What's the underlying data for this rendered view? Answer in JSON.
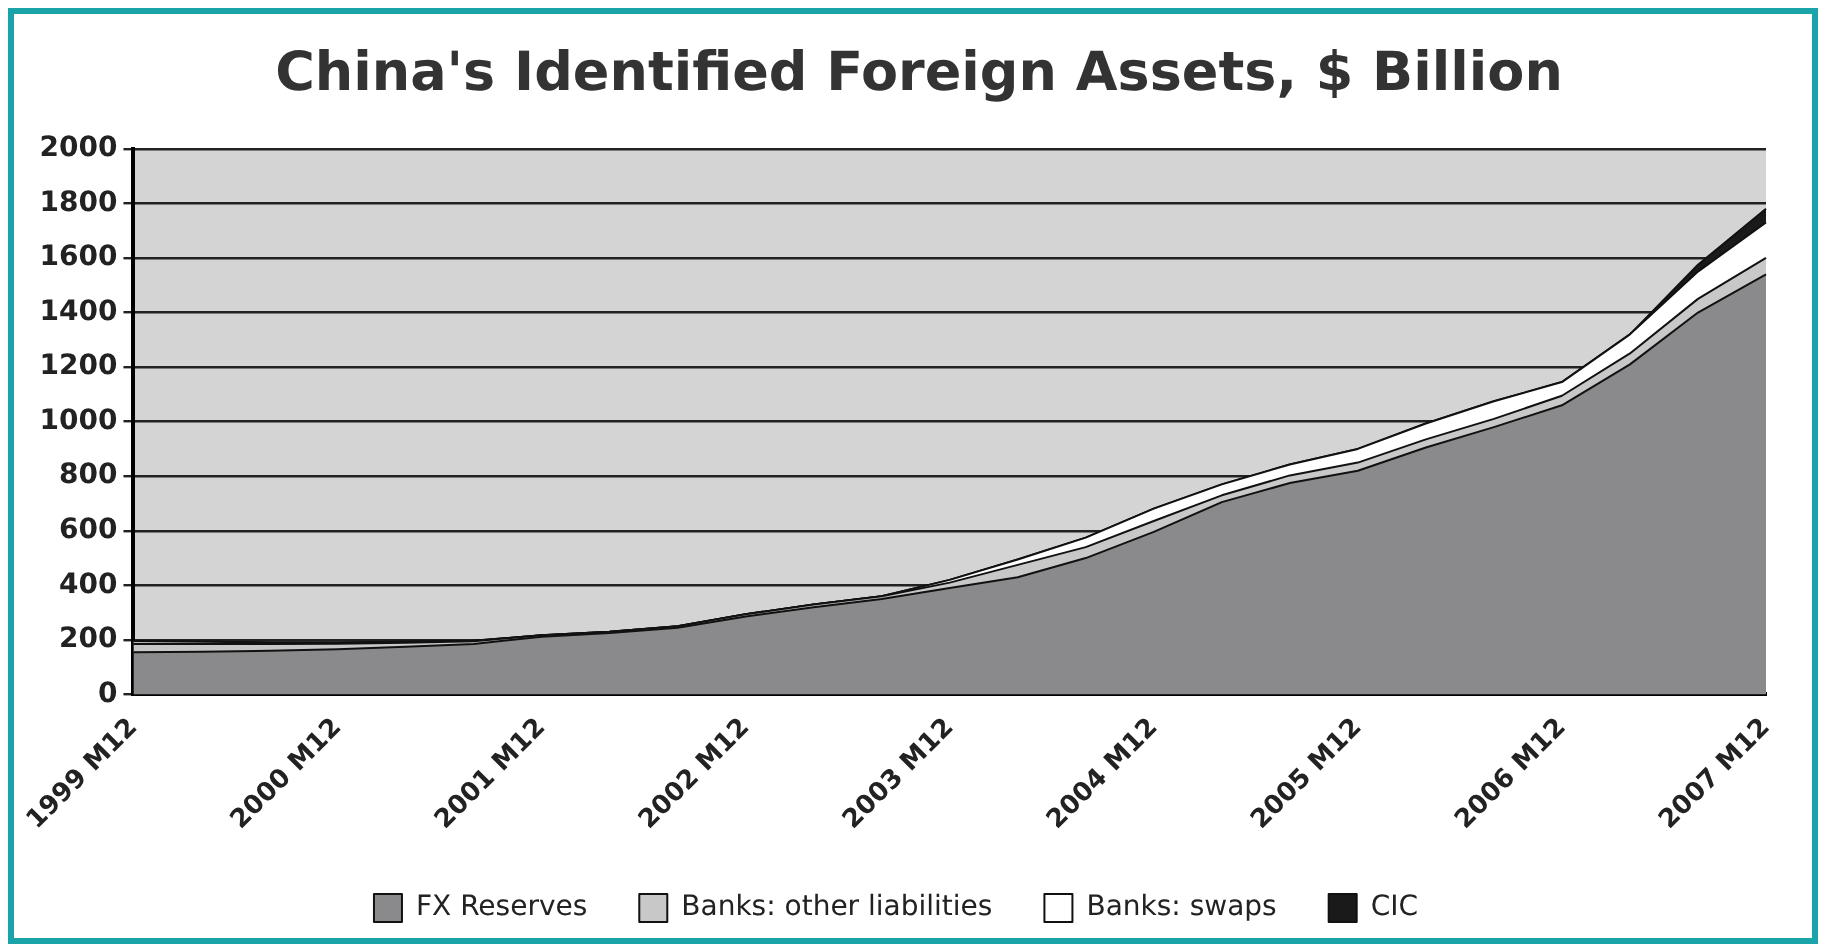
{
  "chart_data": {
    "type": "area",
    "title": "China's Identified Foreign Assets, $ Billion",
    "stacked": true,
    "categories": [
      "1999 M12",
      null,
      null,
      "2000 M12",
      null,
      null,
      "2001 M12",
      null,
      null,
      "2002 M12",
      null,
      null,
      "2003 M12",
      null,
      null,
      "2004 M12",
      null,
      null,
      "2005 M12",
      null,
      null,
      "2006 M12",
      null,
      null,
      "2007 M12"
    ],
    "series": [
      {
        "name": "FX Reserves",
        "color": "#8a8a8c",
        "values": [
          155,
          157,
          160,
          166,
          175,
          185,
          212,
          225,
          245,
          286,
          320,
          350,
          390,
          430,
          500,
          596,
          705,
          775,
          820,
          905,
          980,
          1060,
          1210,
          1400,
          1540
        ]
      },
      {
        "name": "Banks: other liabilities",
        "color": "#c8c8c8",
        "values": [
          30,
          28,
          25,
          20,
          15,
          10,
          5,
          5,
          5,
          8,
          10,
          10,
          20,
          45,
          40,
          40,
          25,
          28,
          30,
          30,
          30,
          35,
          40,
          50,
          60
        ]
      },
      {
        "name": "Banks: swaps",
        "color": "#ffffff",
        "values": [
          10,
          8,
          6,
          5,
          3,
          2,
          0,
          0,
          0,
          0,
          0,
          0,
          10,
          20,
          35,
          45,
          40,
          40,
          50,
          58,
          65,
          50,
          70,
          100,
          130
        ]
      },
      {
        "name": "CIC",
        "color": "#1a1a1a",
        "values": [
          0,
          0,
          0,
          0,
          0,
          0,
          0,
          0,
          0,
          0,
          0,
          0,
          0,
          0,
          0,
          0,
          0,
          0,
          0,
          0,
          0,
          0,
          0,
          25,
          50
        ]
      }
    ],
    "ylim": [
      0,
      2000
    ],
    "yticks": [
      0,
      200,
      400,
      600,
      800,
      1000,
      1200,
      1400,
      1600,
      1800,
      2000
    ],
    "grid": "y",
    "legend": "bottom"
  }
}
